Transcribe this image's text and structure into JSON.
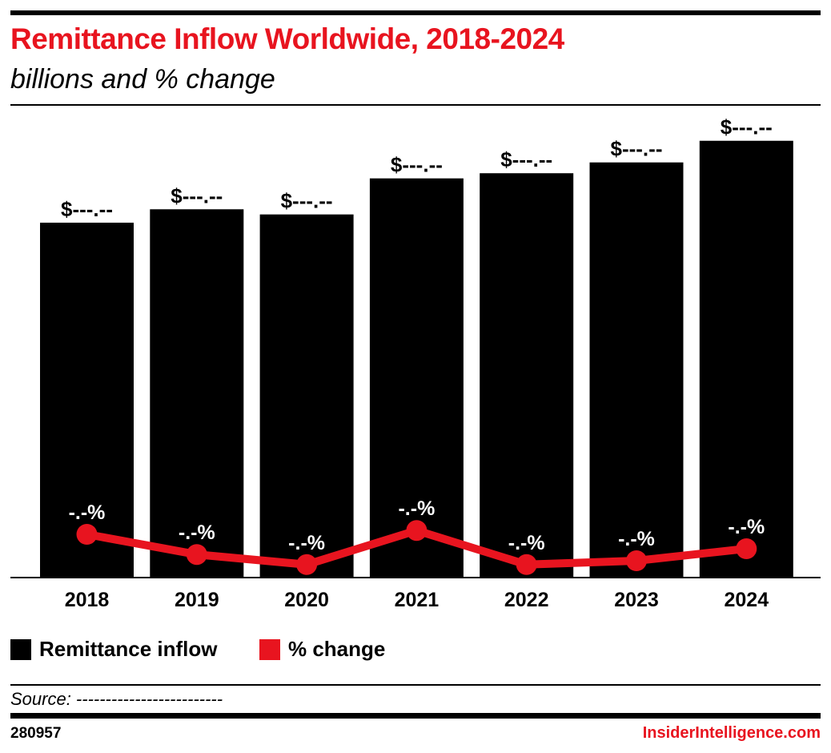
{
  "header": {
    "title": "Remittance Inflow Worldwide, 2018-2024",
    "subtitle": "billions and % change"
  },
  "chart_data": {
    "type": "bar",
    "categories": [
      "2018",
      "2019",
      "2020",
      "2021",
      "2022",
      "2023",
      "2024"
    ],
    "series": [
      {
        "name": "Remittance inflow",
        "type": "bar",
        "color": "#000000",
        "values": [
          689,
          715,
          705,
          775,
          785,
          806,
          848
        ],
        "labels": [
          "$---.--",
          "$---.--",
          "$---.--",
          "$---.--",
          "$---.--",
          "$---.--",
          "$---.--"
        ]
      },
      {
        "name": "% change",
        "type": "line",
        "color": "#e8141f",
        "values": [
          7.0,
          2.8,
          0.7,
          7.8,
          0.7,
          1.5,
          4.0
        ],
        "labels": [
          "-.-%",
          "-.-%",
          "-.-%",
          "-.-%",
          "-.-%",
          "-.-%",
          "-.-%"
        ]
      }
    ],
    "legend": "bottom-left",
    "grid": false
  },
  "footer": {
    "source": "Source: -------------------------",
    "chart_id": "280957",
    "brand": "InsiderIntelligence.com"
  }
}
